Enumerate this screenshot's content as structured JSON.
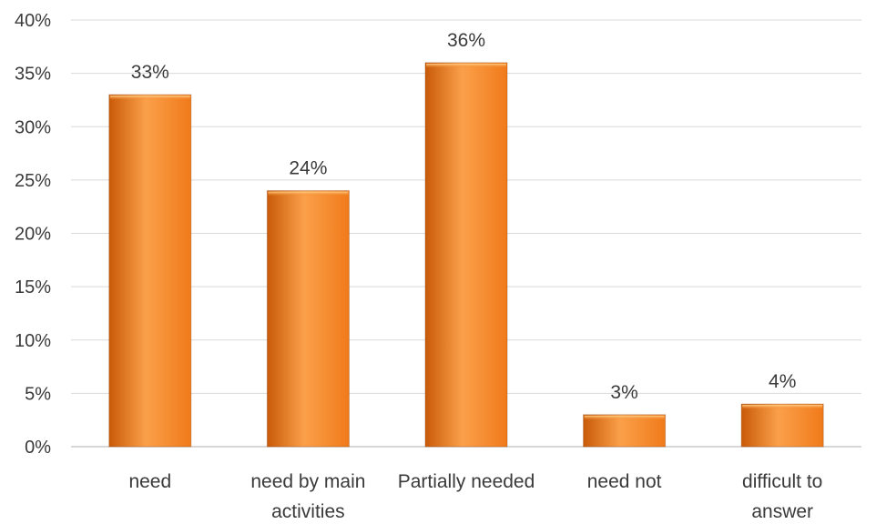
{
  "chart_data": {
    "type": "bar",
    "categories": [
      [
        "need"
      ],
      [
        "need by main",
        "activities"
      ],
      [
        "Partially needed"
      ],
      [
        "need not"
      ],
      [
        "difficult to",
        "answer"
      ]
    ],
    "values": [
      33,
      24,
      36,
      3,
      4
    ],
    "data_labels": [
      "33%",
      "24%",
      "36%",
      "3%",
      "4%"
    ],
    "y_ticks": [
      "0%",
      "5%",
      "10%",
      "15%",
      "20%",
      "25%",
      "30%",
      "35%",
      "40%"
    ],
    "ylim": [
      0,
      40
    ],
    "y_unit": "%",
    "grid": true,
    "legend": "none",
    "title": "",
    "xlabel": "",
    "ylabel": "",
    "colors": {
      "bar": "#f07a1a",
      "bar_light": "#fba04a",
      "bar_dark": "#c85a08",
      "bar_edge": "#8a3a00"
    }
  }
}
